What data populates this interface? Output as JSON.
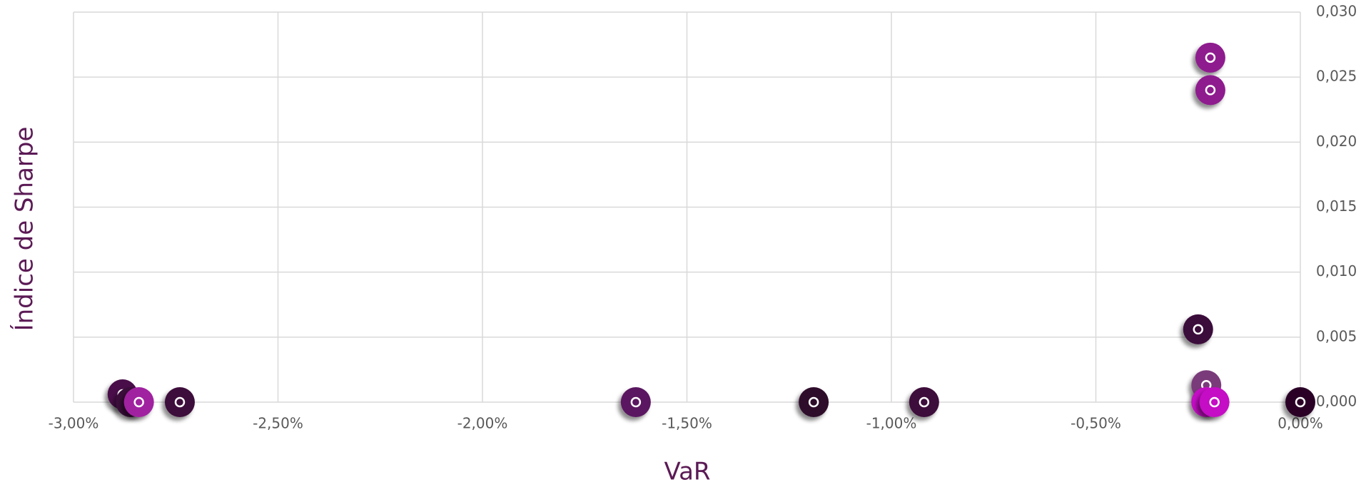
{
  "chart_data": {
    "type": "scatter",
    "xlabel": "VaR",
    "ylabel": "Índice de Sharpe",
    "x": [
      -0.22,
      -0.22,
      -0.25,
      -0.23,
      -0.23,
      -0.21,
      0,
      -0.92,
      -1.19,
      -1.625,
      -2.74,
      -2.88,
      -2.86,
      -2.84
    ],
    "values": [
      0.0265,
      0.024,
      0.0056,
      0.0013,
      0,
      0,
      0,
      0,
      0,
      0,
      0,
      0.0006,
      0,
      0
    ],
    "colors": [
      "#8e1a8e",
      "#8e1a8e",
      "#3a0a3a",
      "#7a3a7a",
      "#c40dc4",
      "#c40dc4",
      "#2a0528",
      "#3d0b3a",
      "#2e0a2c",
      "#5a1560",
      "#3d0b3a",
      "#4a0e48",
      "#3a0a3a",
      "#a020a0"
    ],
    "xlim": [
      -3,
      0
    ],
    "xticks": [
      {
        "value": -3,
        "label": "-3,00%"
      },
      {
        "value": -2.5,
        "label": "-2,50%"
      },
      {
        "value": -2,
        "label": "-2,00%"
      },
      {
        "value": -1.5,
        "label": "-1,50%"
      },
      {
        "value": -1,
        "label": "-1,00%"
      },
      {
        "value": -0.5,
        "label": "-0,50%"
      },
      {
        "value": 0,
        "label": "0,00%"
      }
    ],
    "ylim": [
      0,
      0.03
    ],
    "yticks": [
      {
        "value": 0,
        "label": "0,000"
      },
      {
        "value": 0.005,
        "label": "0,005"
      },
      {
        "value": 0.01,
        "label": "0,010"
      },
      {
        "value": 0.015,
        "label": "0,015"
      },
      {
        "value": 0.02,
        "label": "0,020"
      },
      {
        "value": 0.025,
        "label": "0,025"
      },
      {
        "value": 0.03,
        "label": "0,030"
      }
    ],
    "grid": true
  }
}
